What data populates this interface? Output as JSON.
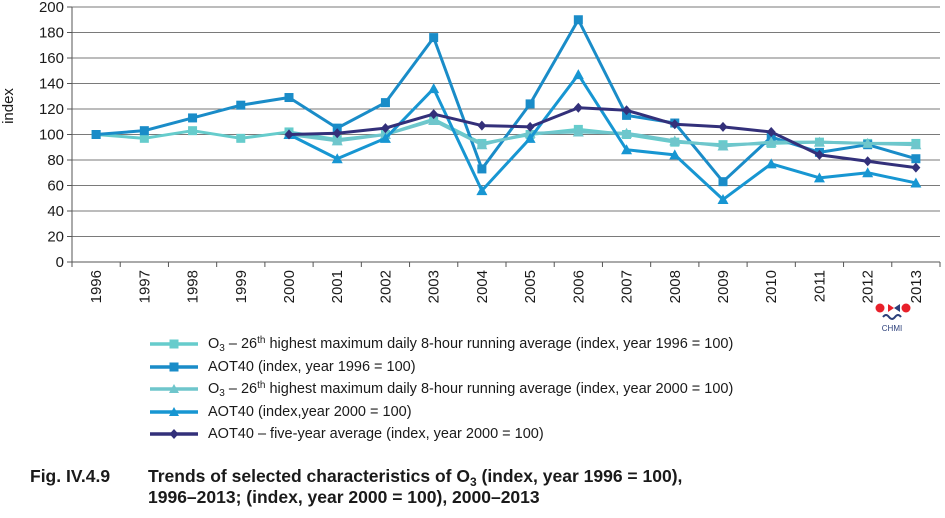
{
  "chart_data": {
    "type": "line",
    "ylabel": "index",
    "ylim": [
      0,
      200
    ],
    "yticks": [
      0,
      20,
      40,
      60,
      80,
      100,
      120,
      140,
      160,
      180,
      200
    ],
    "grid": "horizontal",
    "categories": [
      "1996",
      "1997",
      "1998",
      "1999",
      "2000",
      "2001",
      "2002",
      "2003",
      "2004",
      "2005",
      "2006",
      "2007",
      "2008",
      "2009",
      "2010",
      "2011",
      "2012",
      "2013"
    ],
    "series": [
      {
        "key": "s1",
        "color": "#66cccc",
        "marker": "square",
        "values": [
          100,
          97,
          103,
          97,
          102,
          96,
          100,
          112,
          93,
          100,
          104,
          100,
          94,
          92,
          93,
          94,
          93,
          93
        ]
      },
      {
        "key": "s2",
        "color": "#1a8cc8",
        "marker": "square",
        "values": [
          100,
          103,
          113,
          123,
          129,
          105,
          125,
          176,
          73,
          124,
          190,
          115,
          109,
          63,
          98,
          86,
          92,
          81
        ]
      },
      {
        "key": "s3",
        "color": "#6fc6cc",
        "marker": "triangle",
        "values": [
          null,
          null,
          null,
          null,
          100,
          95,
          100,
          111,
          92,
          101,
          102,
          101,
          95,
          91,
          94,
          94,
          93,
          92
        ]
      },
      {
        "key": "s4",
        "color": "#1796d2",
        "marker": "triangle",
        "values": [
          null,
          null,
          null,
          null,
          100,
          81,
          97,
          136,
          56,
          97,
          147,
          88,
          84,
          49,
          77,
          66,
          70,
          62
        ]
      },
      {
        "key": "s5",
        "color": "#33307a",
        "marker": "diamond",
        "values": [
          null,
          null,
          null,
          null,
          100,
          101,
          105,
          116,
          107,
          106,
          121,
          119,
          108,
          106,
          102,
          84,
          79,
          74
        ]
      }
    ]
  },
  "legend": {
    "s1": {
      "a": "O",
      "sub": "3",
      "b": " – 26",
      "sup": "th",
      "c": " highest maximum daily 8-hour running average  (index, year 1996 = 100)"
    },
    "s2": {
      "text": "AOT40 (index, year 1996 = 100)"
    },
    "s3": {
      "a": "O",
      "sub": "3",
      "b": " – 26",
      "sup": "th",
      "c": " highest maximum daily 8-hour running average (index, year 2000 = 100)"
    },
    "s4": {
      "text": "AOT40 (index,year 2000 = 100)"
    },
    "s5": {
      "text": "AOT40 – five-year average (index, year 2000 = 100)"
    }
  },
  "logo": {
    "text": "CHMI"
  },
  "caption": {
    "number": "Fig. IV.4.9",
    "line1_a": "Trends of selected characteristics of O",
    "line1_sub": "3",
    "line1_b": " (index, year 1996 = 100),",
    "line2": "1996–2013; (index, year 2000 = 100), 2000–2013"
  }
}
